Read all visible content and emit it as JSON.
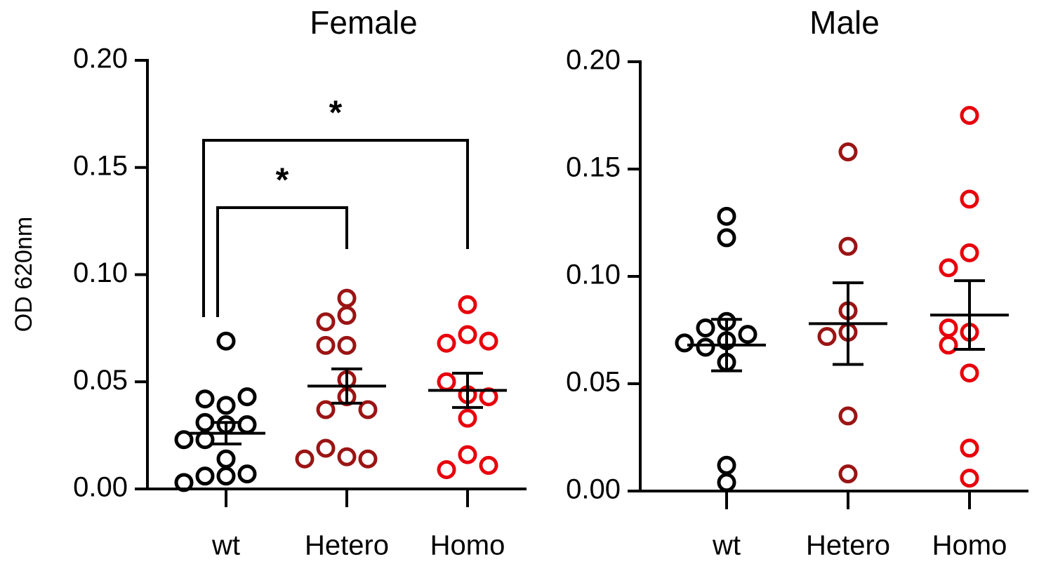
{
  "chart_data": [
    {
      "type": "strip",
      "title": "Female",
      "ylabel": "OD 620nm",
      "categories": [
        "wt",
        "Hetero",
        "Homo"
      ],
      "ylim": [
        0,
        0.2
      ],
      "yticks": [
        {
          "value": 0,
          "label": "0.00"
        },
        {
          "value": 0.05,
          "label": "0.05"
        },
        {
          "value": 0.1,
          "label": "0.10"
        },
        {
          "value": 0.15,
          "label": "0.15"
        },
        {
          "value": 0.2,
          "label": "0.20"
        }
      ],
      "series": [
        {
          "color": "#000000",
          "values": [
            0.069,
            0.039,
            0.042,
            0.043,
            0.03,
            0.031,
            0.03,
            0.023,
            0.023,
            0.014,
            0.006,
            0.006,
            0.007,
            0.003
          ],
          "mean": 0.026,
          "sem": 0.005
        },
        {
          "color": "#9b1414",
          "values": [
            0.089,
            0.081,
            0.078,
            0.067,
            0.067,
            0.051,
            0.043,
            0.037,
            0.037,
            0.015,
            0.019,
            0.014,
            0.014
          ],
          "mean": 0.048,
          "sem": 0.008
        },
        {
          "color": "#e8000b",
          "values": [
            0.086,
            0.072,
            0.068,
            0.069,
            0.044,
            0.05,
            0.043,
            0.033,
            0.016,
            0.009,
            0.011
          ],
          "mean": 0.046,
          "sem": 0.008
        }
      ],
      "comparisons": [
        {
          "groups": [
            "wt",
            "Hetero"
          ],
          "label": "*"
        },
        {
          "groups": [
            "wt",
            "Homo"
          ],
          "label": "*"
        }
      ]
    },
    {
      "type": "strip",
      "title": "Male",
      "categories": [
        "wt",
        "Hetero",
        "Homo"
      ],
      "ylim": [
        0,
        0.2
      ],
      "yticks": [
        {
          "value": 0,
          "label": "0.00"
        },
        {
          "value": 0.05,
          "label": "0.05"
        },
        {
          "value": 0.1,
          "label": "0.10"
        },
        {
          "value": 0.15,
          "label": "0.15"
        },
        {
          "value": 0.2,
          "label": "0.20"
        }
      ],
      "series": [
        {
          "color": "#000000",
          "values": [
            0.128,
            0.118,
            0.079,
            0.076,
            0.073,
            0.07,
            0.069,
            0.067,
            0.06,
            0.004,
            0.012
          ],
          "mean": 0.068,
          "sem": 0.012
        },
        {
          "color": "#9b1414",
          "values": [
            0.158,
            0.114,
            0.084,
            0.074,
            0.072,
            0.035,
            0.008
          ],
          "mean": 0.078,
          "sem": 0.019
        },
        {
          "color": "#e8000b",
          "values": [
            0.175,
            0.136,
            0.111,
            0.104,
            0.074,
            0.076,
            0.068,
            0.055,
            0.02,
            0.006
          ],
          "mean": 0.082,
          "sem": 0.016
        }
      ]
    }
  ]
}
